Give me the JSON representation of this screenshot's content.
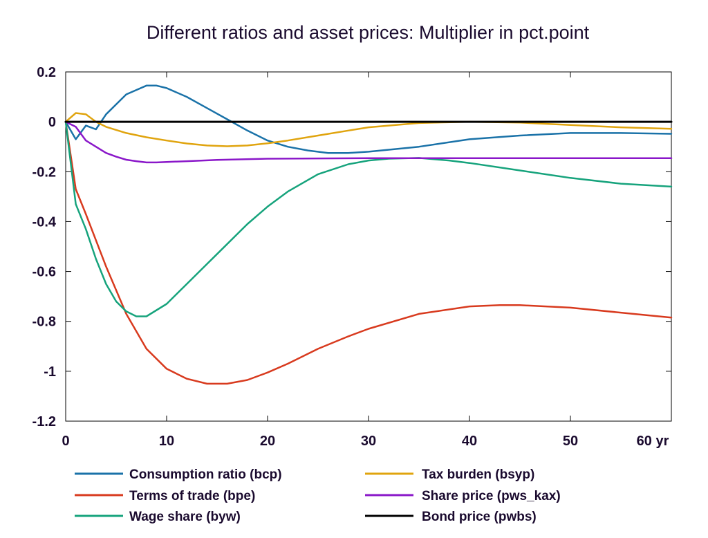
{
  "chart_data": {
    "type": "line",
    "title": "Different ratios and asset prices: Multiplier in pct.point",
    "xlabel": "",
    "ylabel": "",
    "x_unit_label": "yr",
    "xlim": [
      0,
      60
    ],
    "ylim": [
      -1.2,
      0.2
    ],
    "x_ticks": [
      0,
      10,
      20,
      30,
      40,
      50,
      60
    ],
    "x_tick_labels": [
      "0",
      "10",
      "20",
      "30",
      "40",
      "50",
      "60 yr"
    ],
    "y_ticks": [
      0.2,
      0,
      -0.2,
      -0.4,
      -0.6,
      -0.8,
      -1,
      -1.2
    ],
    "y_tick_labels": [
      "0.2",
      "0",
      "-0.2",
      "-0.4",
      "-0.6",
      "-0.8",
      "-1",
      "-1.2"
    ],
    "grid": false,
    "legend_position": "bottom",
    "series": [
      {
        "name": "Consumption ratio (bcp)",
        "color": "#1a72a8",
        "x": [
          0,
          1,
          2,
          3,
          4,
          6,
          8,
          9,
          10,
          12,
          14,
          16,
          18,
          20,
          22,
          24,
          26,
          28,
          30,
          35,
          40,
          45,
          50,
          55,
          60
        ],
        "y": [
          0,
          -0.07,
          -0.015,
          -0.03,
          0.03,
          0.11,
          0.145,
          0.145,
          0.135,
          0.1,
          0.055,
          0.01,
          -0.035,
          -0.075,
          -0.1,
          -0.115,
          -0.125,
          -0.125,
          -0.12,
          -0.1,
          -0.07,
          -0.055,
          -0.045,
          -0.045,
          -0.048
        ]
      },
      {
        "name": "Terms of trade (bpe)",
        "color": "#d83a1e",
        "x": [
          0,
          1,
          2,
          4,
          6,
          8,
          10,
          12,
          14,
          15,
          16,
          18,
          20,
          22,
          25,
          28,
          30,
          35,
          40,
          43,
          45,
          50,
          55,
          60
        ],
        "y": [
          0,
          -0.27,
          -0.37,
          -0.58,
          -0.77,
          -0.91,
          -0.99,
          -1.03,
          -1.05,
          -1.05,
          -1.05,
          -1.035,
          -1.005,
          -0.97,
          -0.91,
          -0.86,
          -0.83,
          -0.77,
          -0.74,
          -0.735,
          -0.735,
          -0.745,
          -0.765,
          -0.785
        ]
      },
      {
        "name": "Wage share (byw)",
        "color": "#16a37c",
        "x": [
          0,
          1,
          2,
          3,
          4,
          5,
          6,
          7,
          8,
          10,
          12,
          15,
          18,
          20,
          22,
          25,
          28,
          30,
          32,
          35,
          38,
          40,
          45,
          50,
          55,
          60
        ],
        "y": [
          0,
          -0.33,
          -0.43,
          -0.55,
          -0.65,
          -0.72,
          -0.76,
          -0.78,
          -0.78,
          -0.73,
          -0.65,
          -0.53,
          -0.41,
          -0.34,
          -0.28,
          -0.21,
          -0.17,
          -0.155,
          -0.148,
          -0.145,
          -0.155,
          -0.165,
          -0.195,
          -0.225,
          -0.248,
          -0.26
        ]
      },
      {
        "name": "Tax burden (bsyp)",
        "color": "#e0a40e",
        "x": [
          0,
          1,
          2,
          3,
          4,
          6,
          8,
          10,
          12,
          14,
          16,
          18,
          20,
          22,
          25,
          28,
          30,
          35,
          40,
          45,
          50,
          55,
          60
        ],
        "y": [
          0,
          0.035,
          0.03,
          0.0,
          -0.02,
          -0.045,
          -0.062,
          -0.075,
          -0.087,
          -0.095,
          -0.098,
          -0.095,
          -0.086,
          -0.075,
          -0.055,
          -0.035,
          -0.022,
          -0.005,
          0.0,
          -0.003,
          -0.013,
          -0.022,
          -0.028
        ]
      },
      {
        "name": "Share price (pws_kax)",
        "color": "#8a17c9",
        "x": [
          0,
          1,
          2,
          3,
          4,
          5,
          6,
          7,
          8,
          9,
          10,
          12,
          15,
          20,
          30,
          40,
          50,
          60
        ],
        "y": [
          0,
          -0.02,
          -0.075,
          -0.1,
          -0.125,
          -0.14,
          -0.152,
          -0.158,
          -0.163,
          -0.163,
          -0.161,
          -0.158,
          -0.153,
          -0.148,
          -0.146,
          -0.146,
          -0.146,
          -0.146
        ]
      },
      {
        "name": "Bond price (pwbs)",
        "color": "#000000",
        "x": [
          0,
          60
        ],
        "y": [
          0,
          0
        ]
      }
    ]
  }
}
